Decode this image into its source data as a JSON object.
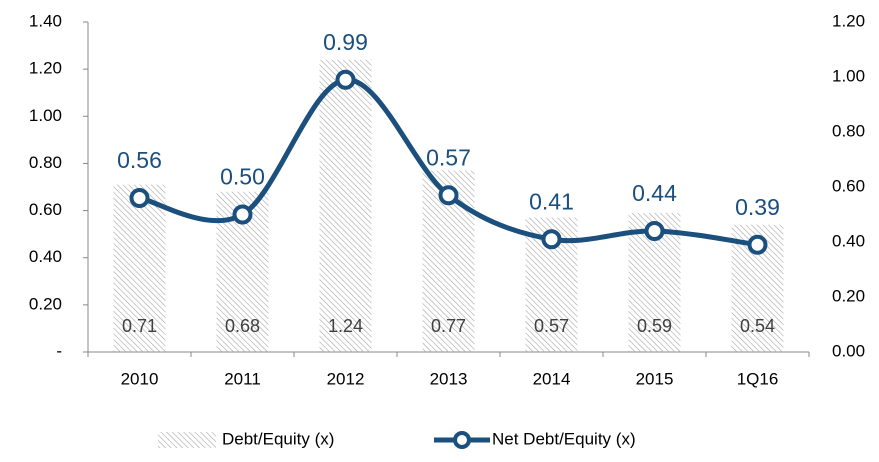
{
  "chart_data": {
    "type": "bar-line",
    "categories": [
      "2010",
      "2011",
      "2012",
      "2013",
      "2014",
      "2015",
      "1Q16"
    ],
    "series": [
      {
        "name": "Debt/Equity (x)",
        "type": "bar",
        "color": "#a6a6a6",
        "axis": "y",
        "values": [
          0.71,
          0.68,
          1.24,
          0.77,
          0.57,
          0.59,
          0.54
        ]
      },
      {
        "name": "Net Debt/Equity (x)",
        "type": "line",
        "color": "#1b4f7e",
        "axis": "y2",
        "values": [
          0.56,
          0.5,
          0.99,
          0.57,
          0.41,
          0.44,
          0.39
        ],
        "value_labels": [
          "0.56",
          "0.50",
          "0.99",
          "0.57",
          "0.41",
          "0.44",
          "0.39"
        ]
      }
    ],
    "ylim": [
      0,
      1.4
    ],
    "yticks": [
      {
        "value": 0,
        "label": "-"
      },
      {
        "value": 0.2,
        "label": "0.20"
      },
      {
        "value": 0.4,
        "label": "0.40"
      },
      {
        "value": 0.6,
        "label": "0.60"
      },
      {
        "value": 0.8,
        "label": "0.80"
      },
      {
        "value": 1.0,
        "label": "1.00"
      },
      {
        "value": 1.2,
        "label": "1.20"
      },
      {
        "value": 1.4,
        "label": "1.40"
      }
    ],
    "y2lim": [
      0,
      1.2
    ],
    "y2ticks": [
      {
        "value": 0,
        "label": "0.00"
      },
      {
        "value": 0.2,
        "label": "0.20"
      },
      {
        "value": 0.4,
        "label": "0.40"
      },
      {
        "value": 0.6,
        "label": "0.60"
      },
      {
        "value": 0.8,
        "label": "0.80"
      },
      {
        "value": 1.0,
        "label": "1.00"
      },
      {
        "value": 1.2,
        "label": "1.20"
      }
    ],
    "legend": "bottom"
  }
}
